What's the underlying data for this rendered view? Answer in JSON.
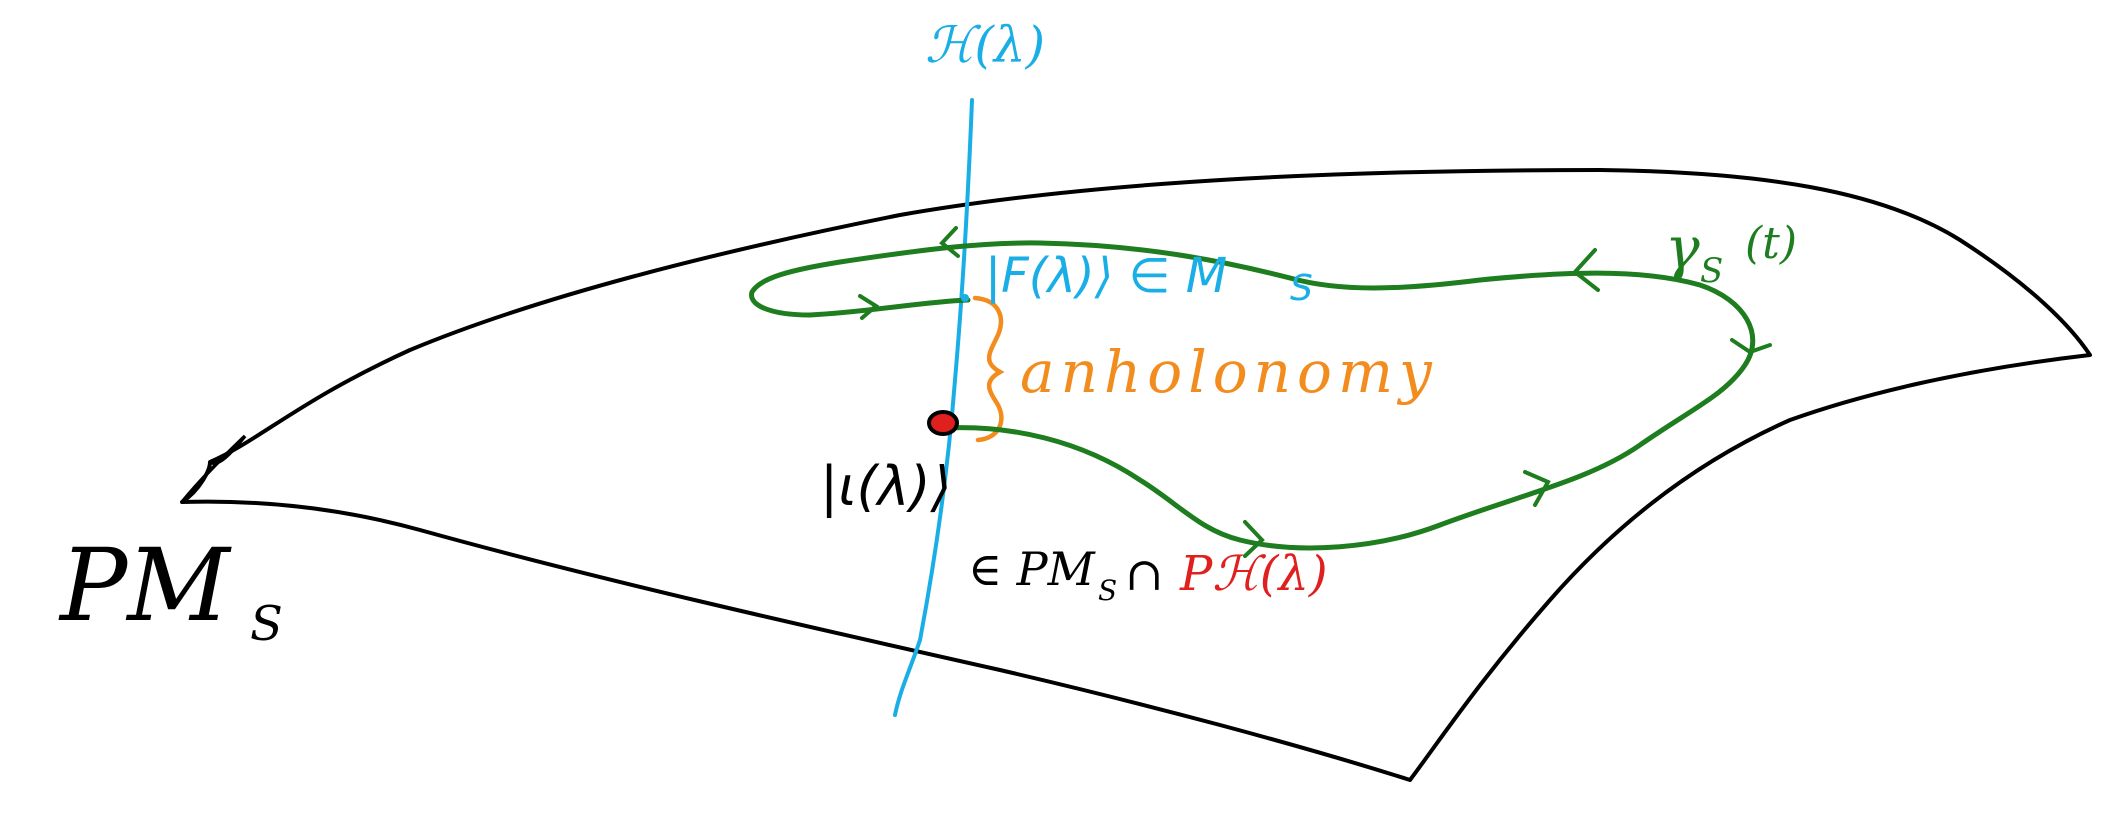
{
  "colors": {
    "surface": "#000000",
    "fiber": "#1aaee6",
    "loop": "#1e7d1e",
    "anholonomy": "#f28c1e",
    "point": "#e0201e",
    "background": "#ffffff"
  },
  "labels": {
    "manifold": "PM",
    "manifold_sub": "S",
    "fiber_top": "ℋ(λ)",
    "final_state": "|F(λ)⟩ ∈ M",
    "final_state_sub": "S",
    "curve_name": "γ",
    "curve_sub": "S",
    "curve_param": "(t)",
    "anholonomy": "anholonomy",
    "initial_state": "|ι(λ)⟩",
    "intersection_prefix": "∈ PM",
    "intersection_sub": "S",
    "intersection_cap": "∩",
    "intersection_tail": "Pℋ(λ)"
  }
}
